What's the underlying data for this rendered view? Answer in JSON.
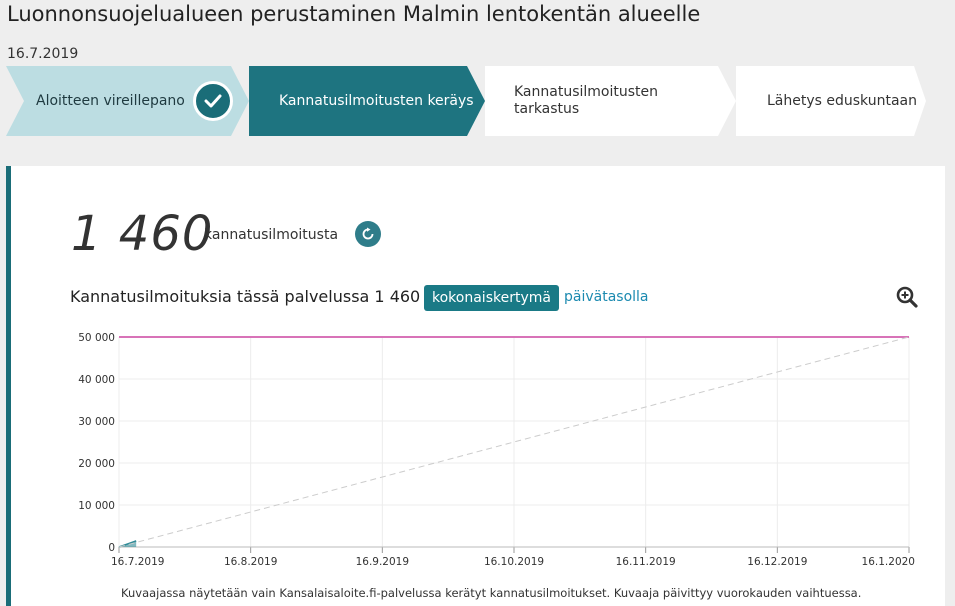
{
  "page": {
    "title": "Luonnonsuojelualueen perustaminen Malmin lentokentän alueelle",
    "date": "16.7.2019"
  },
  "steps": [
    {
      "label": "Aloitteen vireillepano",
      "state": "done"
    },
    {
      "label": "Kannatusilmoitusten keräys",
      "state": "active"
    },
    {
      "label": "Kannatusilmoitusten tarkastus",
      "state": "upcoming"
    },
    {
      "label": "Lähetys eduskuntaan",
      "state": "upcoming"
    }
  ],
  "summary": {
    "count": "1 460",
    "count_label": "kannatusilmoitusta"
  },
  "chart_header": {
    "title": "Kannatusilmoituksia tässä palvelussa 1 460",
    "view_cumulative": "kokonaiskertymä",
    "view_daily": "päivätasolla"
  },
  "chart_data": {
    "type": "line",
    "x_tick_labels": [
      "16.7.2019",
      "16.8.2019",
      "16.9.2019",
      "16.10.2019",
      "16.11.2019",
      "16.12.2019",
      "16.1.2020"
    ],
    "y_tick_labels": [
      "0",
      "10 000",
      "20 000",
      "30 000",
      "40 000",
      "50 000"
    ],
    "ylim": [
      0,
      50000
    ],
    "xlim": [
      "2019-07-16",
      "2020-01-16"
    ],
    "grid": true,
    "series": [
      {
        "kind": "actual",
        "color": "#2f8a96",
        "x": [
          "2019-07-16",
          "2019-07-20"
        ],
        "y": [
          0,
          1460
        ]
      },
      {
        "kind": "projection",
        "color": "#cccccc",
        "x": [
          "2019-07-16",
          "2020-01-16"
        ],
        "y": [
          0,
          50000
        ]
      }
    ],
    "target_line": {
      "y": 50000,
      "color": "#d873b8"
    }
  },
  "footnote": "Kuvaajassa näytetään vain Kansalaisaloite.fi-palvelussa kerätyt kannatusilmoitukset. Kuvaaja päivittyy vuorokauden vaihtuessa.",
  "colors": {
    "accent": "#1a6d78",
    "done_step": "#bcdde2",
    "link": "#1b8ab0",
    "target": "#d873b8"
  },
  "icons": {
    "done": "check-icon",
    "refresh": "refresh-icon",
    "zoom": "zoom-in-icon"
  }
}
